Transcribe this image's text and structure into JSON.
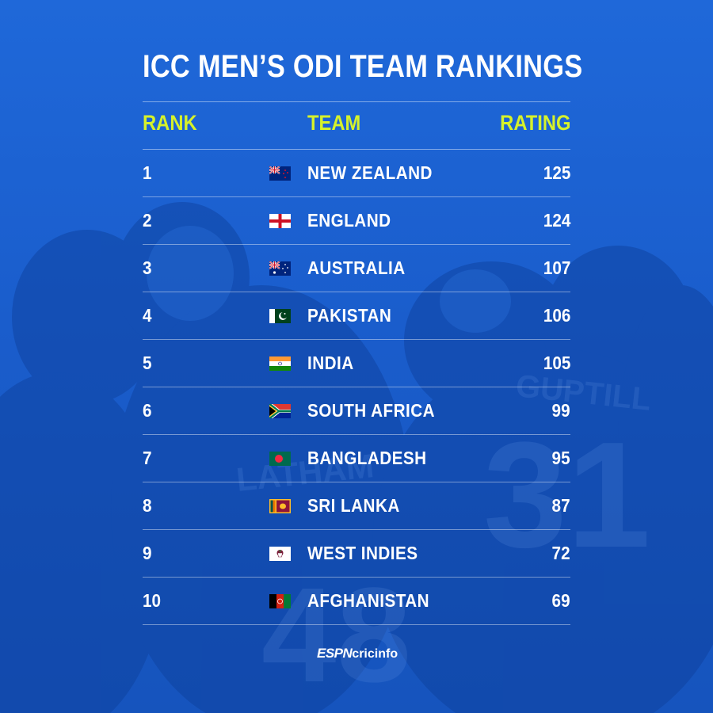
{
  "title": "ICC MEN’S ODI TEAM RANKINGS",
  "headers": {
    "rank": "RANK",
    "team": "TEAM",
    "rating": "RATING"
  },
  "colors": {
    "background": "#1a5dcc",
    "header_accent": "#d6f22a",
    "text": "#ffffff"
  },
  "rows": [
    {
      "rank": "1",
      "team": "NEW ZEALAND",
      "rating": "125",
      "flag": "new-zealand-flag"
    },
    {
      "rank": "2",
      "team": "ENGLAND",
      "rating": "124",
      "flag": "england-flag"
    },
    {
      "rank": "3",
      "team": "AUSTRALIA",
      "rating": "107",
      "flag": "australia-flag"
    },
    {
      "rank": "4",
      "team": "PAKISTAN",
      "rating": "106",
      "flag": "pakistan-flag"
    },
    {
      "rank": "5",
      "team": "INDIA",
      "rating": "105",
      "flag": "india-flag"
    },
    {
      "rank": "6",
      "team": "SOUTH AFRICA",
      "rating": "99",
      "flag": "south-africa-flag"
    },
    {
      "rank": "7",
      "team": "BANGLADESH",
      "rating": "95",
      "flag": "bangladesh-flag"
    },
    {
      "rank": "8",
      "team": "SRI LANKA",
      "rating": "87",
      "flag": "sri-lanka-flag"
    },
    {
      "rank": "9",
      "team": "WEST INDIES",
      "rating": "72",
      "flag": "west-indies-flag"
    },
    {
      "rank": "10",
      "team": "AFGHANISTAN",
      "rating": "69",
      "flag": "afghanistan-flag"
    }
  ],
  "brand": {
    "espn": "ESPN",
    "cricinfo": "cricinfo"
  }
}
